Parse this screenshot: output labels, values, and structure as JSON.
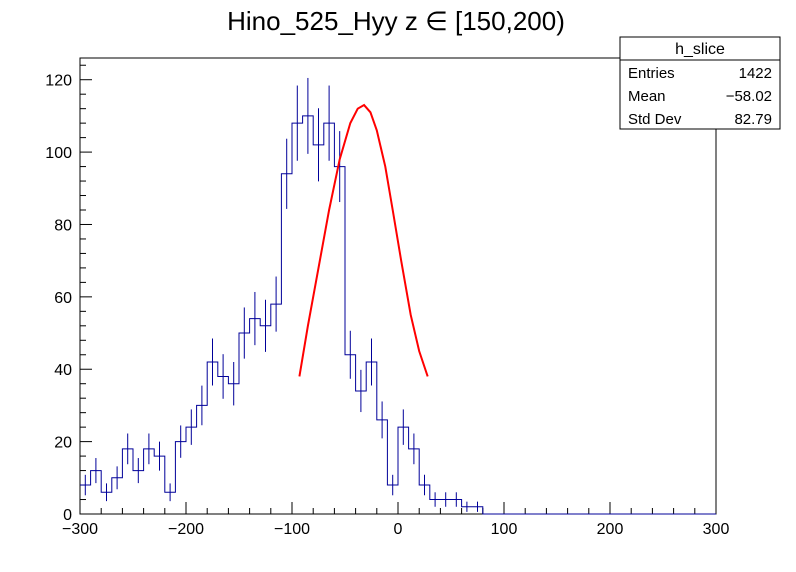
{
  "chart_data": {
    "type": "histogram",
    "title": "Hino_525_Hyy z  ∈ [150,200)",
    "xlabel": "",
    "ylabel": "",
    "xlim": [
      -300,
      300
    ],
    "ylim": [
      0,
      126
    ],
    "x_ticks": [
      -300,
      -200,
      -100,
      0,
      100,
      200,
      300
    ],
    "y_ticks": [
      0,
      20,
      40,
      60,
      80,
      100,
      120
    ],
    "bin_width": 10,
    "bin_lo": [
      -300,
      -290,
      -280,
      -270,
      -260,
      -250,
      -240,
      -230,
      -220,
      -210,
      -200,
      -190,
      -180,
      -170,
      -160,
      -150,
      -140,
      -130,
      -120,
      -110,
      -100,
      -90,
      -80,
      -70,
      -60,
      -50,
      -40,
      -30,
      -20,
      -10,
      0,
      10,
      20,
      30,
      40,
      50,
      60,
      70,
      80,
      90,
      100,
      110,
      120,
      130,
      140,
      150,
      160,
      170,
      180,
      190,
      200,
      210,
      220,
      230,
      240,
      250,
      260,
      270,
      280,
      290
    ],
    "values": [
      8,
      12,
      6,
      10,
      18,
      12,
      18,
      16,
      6,
      20,
      24,
      30,
      42,
      38,
      36,
      50,
      54,
      52,
      58,
      94,
      108,
      110,
      102,
      108,
      96,
      44,
      34,
      42,
      26,
      8,
      24,
      18,
      8,
      4,
      4,
      4,
      2,
      2,
      0,
      0,
      0,
      0,
      0,
      0,
      0,
      0,
      0,
      0,
      0,
      0,
      0,
      0,
      0,
      0,
      0,
      0,
      0,
      0,
      0,
      0
    ],
    "series": [
      {
        "name": "fit",
        "type": "line",
        "color": "#ff0000",
        "x": [
          -93,
          -85,
          -75,
          -65,
          -55,
          -45,
          -38,
          -32,
          -26,
          -20,
          -12,
          -5,
          3,
          12,
          20,
          28
        ],
        "y": [
          38,
          52,
          68,
          84,
          98,
          108,
          112,
          113,
          111,
          106,
          96,
          84,
          70,
          55,
          45,
          38
        ]
      }
    ],
    "histogram_color": "#000099",
    "stats_box": {
      "title": "h_slice",
      "rows": [
        {
          "label": "Entries",
          "value": "1422"
        },
        {
          "label": "Mean",
          "value": "−58.02"
        },
        {
          "label": "Std Dev",
          "value": "82.79"
        }
      ]
    },
    "grid": false,
    "legend": "none"
  }
}
